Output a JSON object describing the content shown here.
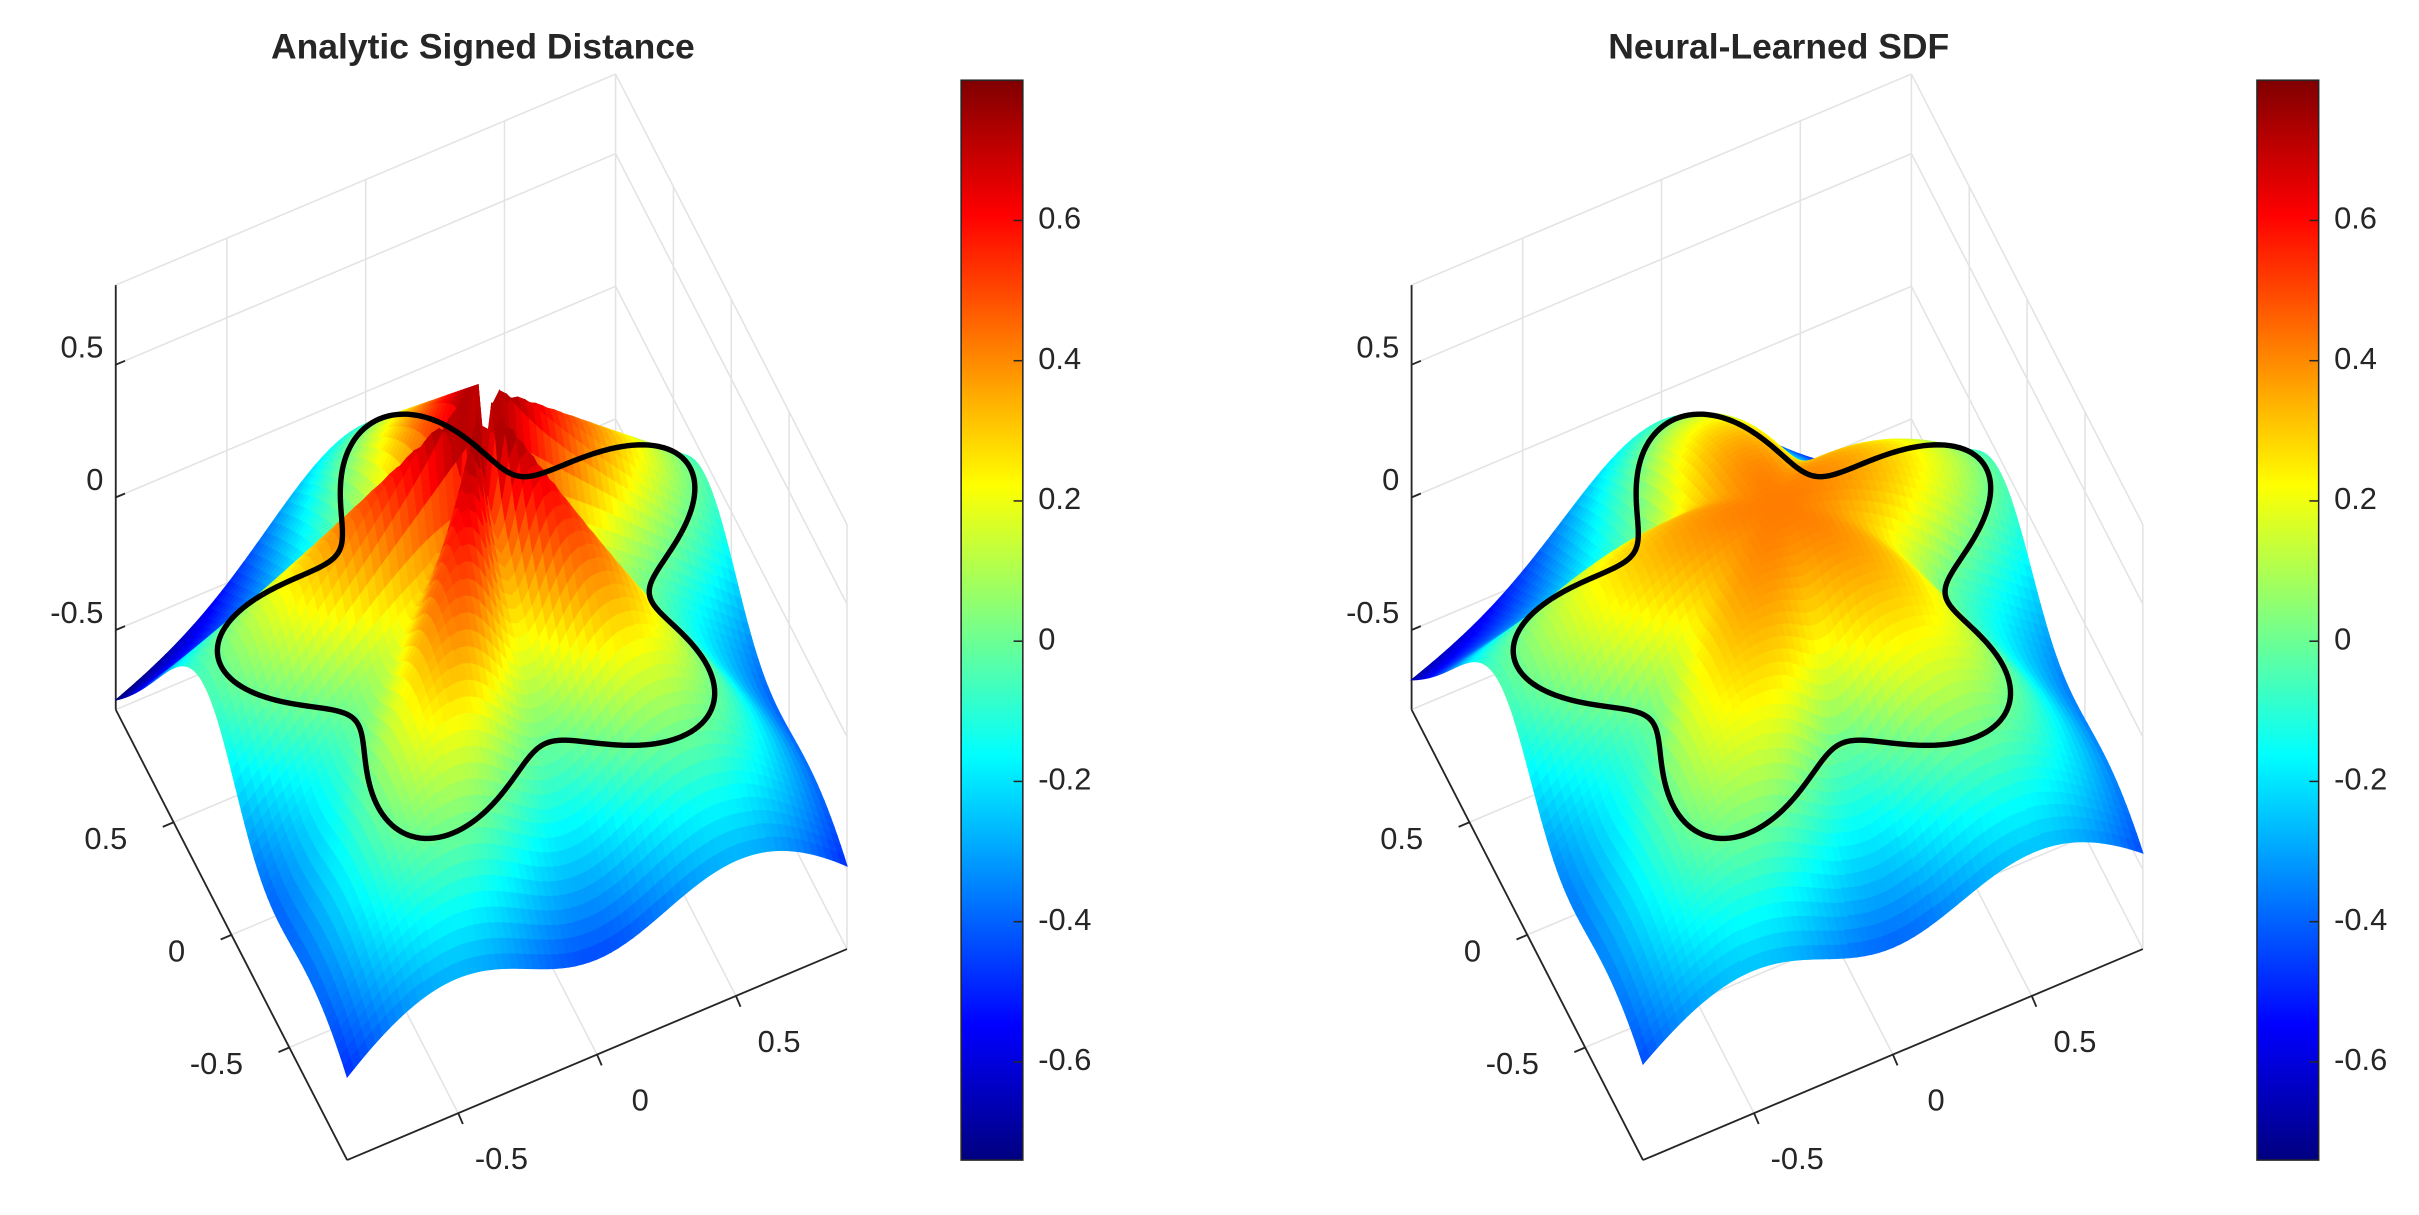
{
  "chart_data": [
    {
      "type": "surface",
      "title": "Analytic Signed Distance",
      "xlim": [
        -0.9,
        0.9
      ],
      "xticks": [
        -0.5,
        0,
        0.5
      ],
      "ylim": [
        -1,
        1
      ],
      "yticks": [
        -0.5,
        0,
        0.5
      ],
      "zlim": [
        -0.8,
        0.8
      ],
      "zticks": [
        -0.5,
        0,
        0.5
      ],
      "colormap": "jet",
      "clim": [
        -0.74,
        0.8
      ],
      "cticks": [
        -0.6,
        -0.4,
        -0.2,
        0,
        0.2,
        0.4,
        0.6
      ],
      "grid": true,
      "contour_color": "#000000"
    },
    {
      "type": "surface",
      "title": "Neural-Learned SDF",
      "xlim": [
        -0.9,
        0.9
      ],
      "xticks": [
        -0.5,
        0,
        0.5
      ],
      "ylim": [
        -1,
        1
      ],
      "yticks": [
        -0.5,
        0,
        0.5
      ],
      "zlim": [
        -0.8,
        0.8
      ],
      "zticks": [
        -0.5,
        0,
        0.5
      ],
      "colormap": "jet",
      "clim": [
        -0.74,
        0.8
      ],
      "cticks": [
        -0.6,
        -0.4,
        -0.2,
        0,
        0.2,
        0.4,
        0.6
      ],
      "grid": true,
      "contour_color": "#000000"
    }
  ]
}
